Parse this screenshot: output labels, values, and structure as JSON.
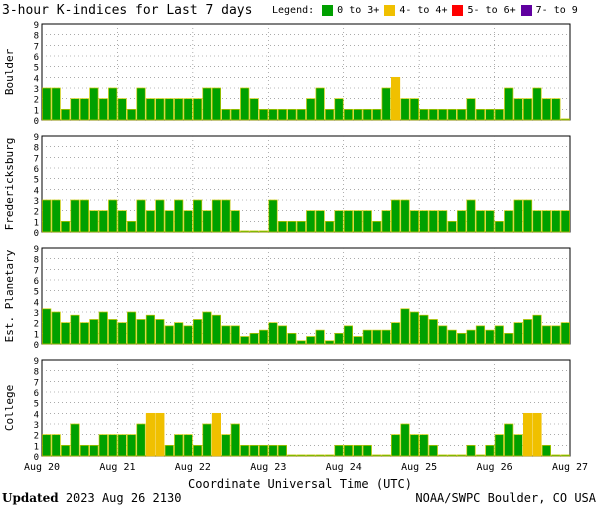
{
  "header": {
    "title": "3-hour K-indices for Last 7 days",
    "legend_label": "Legend:",
    "legend": [
      {
        "label": "0 to 3+",
        "color": "#00a000"
      },
      {
        "label": "4- to 4+",
        "color": "#f0c000"
      },
      {
        "label": "5- to 6+",
        "color": "#ff0000"
      },
      {
        "label": "7- to 9",
        "color": "#6000a0"
      }
    ]
  },
  "footer": {
    "updated_label": "Updated",
    "timestamp": "2023 Aug 26 2130",
    "source": "NOAA/SWPC Boulder, CO USA"
  },
  "chart_data": {
    "type": "bar",
    "title": "3-hour K-indices for Last 7 days",
    "xlabel": "Coordinate Universal Time (UTC)",
    "x_ticks": [
      "Aug 20",
      "Aug 21",
      "Aug 22",
      "Aug 23",
      "Aug 24",
      "Aug 25",
      "Aug 26",
      "Aug 27"
    ],
    "ylim": [
      0,
      9
    ],
    "y_ticks": [
      "0",
      "1",
      "2",
      "3",
      "4",
      "5",
      "6",
      "7",
      "8",
      "9"
    ],
    "grid": true,
    "bars_per_day": 8,
    "panels": [
      {
        "name": "Boulder",
        "values": [
          3,
          3,
          1,
          2,
          2,
          3,
          2,
          3,
          2,
          1,
          3,
          2,
          2,
          2,
          2,
          2,
          2,
          3,
          3,
          1,
          1,
          3,
          2,
          1,
          1,
          1,
          1,
          1,
          2,
          3,
          1,
          2,
          1,
          1,
          1,
          1,
          3,
          4,
          2,
          2,
          1,
          1,
          1,
          1,
          1,
          2,
          1,
          1,
          1,
          3,
          2,
          2,
          3,
          2,
          2,
          0.1
        ]
      },
      {
        "name": "Fredericksburg",
        "values": [
          3,
          3,
          1,
          3,
          3,
          2,
          2,
          3,
          2,
          1,
          3,
          2,
          3,
          2,
          3,
          2,
          3,
          2,
          3,
          3,
          2,
          0.1,
          0.1,
          0.1,
          3,
          1,
          1,
          1,
          2,
          2,
          1,
          2,
          2,
          2,
          2,
          1,
          2,
          3,
          3,
          2,
          2,
          2,
          2,
          1,
          2,
          3,
          2,
          2,
          1,
          2,
          3,
          3,
          2,
          2,
          2,
          2
        ]
      },
      {
        "name": "Est. Planetary",
        "values": [
          3.3,
          3,
          2,
          2.7,
          2,
          2.3,
          3,
          2.3,
          2,
          3,
          2.3,
          2.7,
          2.3,
          1.7,
          2,
          1.7,
          2.3,
          3,
          2.7,
          1.7,
          1.7,
          0.7,
          1,
          1.3,
          2,
          1.7,
          1,
          0.3,
          0.7,
          1.3,
          0.3,
          1,
          1.7,
          0.7,
          1.3,
          1.3,
          1.3,
          2,
          3.3,
          3,
          2.7,
          2.3,
          1.7,
          1.3,
          1,
          1.3,
          1.7,
          1.3,
          1.7,
          1,
          2,
          2.3,
          2.7,
          1.7,
          1.7,
          2
        ]
      },
      {
        "name": "College",
        "values": [
          2,
          2,
          1,
          3,
          1,
          1,
          2,
          2,
          2,
          2,
          3,
          4,
          4,
          1,
          2,
          2,
          1,
          3,
          4,
          2,
          3,
          1,
          1,
          1,
          1,
          1,
          0.1,
          0.1,
          0.1,
          0.1,
          0.1,
          1,
          1,
          1,
          1,
          0.1,
          0.1,
          2,
          3,
          2,
          2,
          1,
          0.1,
          0.1,
          0.1,
          1,
          0.1,
          1,
          2,
          3,
          2,
          4,
          4,
          1,
          0.1,
          0.1
        ]
      }
    ]
  }
}
